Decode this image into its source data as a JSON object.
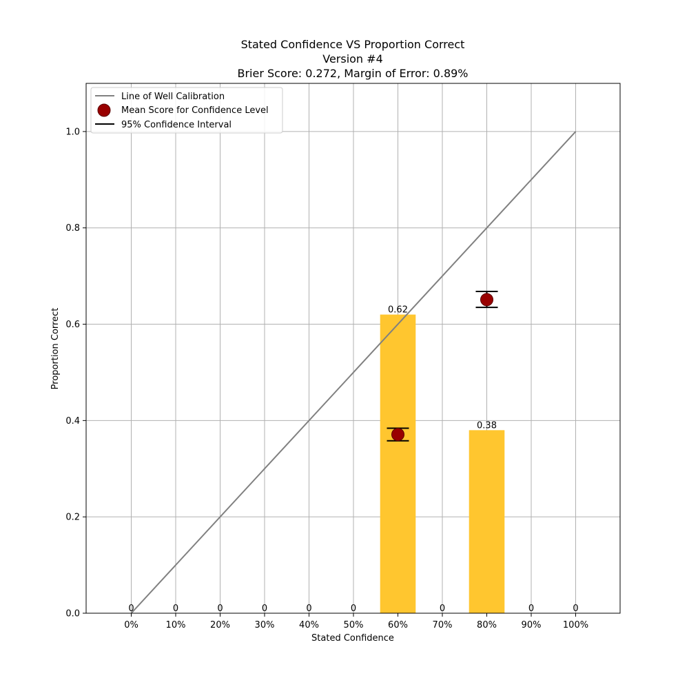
{
  "chart_data": {
    "type": "bar",
    "title": "Stated Confidence VS Proportion Correct",
    "subtitle": "Version #4",
    "subtitle2": "Brier Score: 0.272, Margin of Error: 0.89%",
    "xlabel": "Stated Confidence",
    "ylabel": "Proportion Correct",
    "categories": [
      "0%",
      "10%",
      "20%",
      "30%",
      "40%",
      "50%",
      "60%",
      "70%",
      "80%",
      "90%",
      "100%"
    ],
    "x_values": [
      0,
      10,
      20,
      30,
      40,
      50,
      60,
      70,
      80,
      90,
      100
    ],
    "values": [
      0,
      0,
      0,
      0,
      0,
      0,
      0.62,
      0,
      0.38,
      0,
      0
    ],
    "bar_labels": [
      "0",
      "0",
      "0",
      "0",
      "0",
      "0",
      "0.62",
      "0",
      "0.38",
      "0",
      "0"
    ],
    "ylim": [
      0,
      1.1
    ],
    "yticks": [
      0.0,
      0.2,
      0.4,
      0.6,
      0.8,
      1.0
    ],
    "ytick_labels": [
      "0.0",
      "0.2",
      "0.4",
      "0.6",
      "0.8",
      "1.0"
    ],
    "calibration_line": {
      "x": [
        0,
        100
      ],
      "y": [
        0,
        1.0
      ]
    },
    "mean_points": [
      {
        "x": 60,
        "y": 0.371,
        "ci_low": 0.358,
        "ci_high": 0.384
      },
      {
        "x": 80,
        "y": 0.651,
        "ci_low": 0.635,
        "ci_high": 0.668
      }
    ],
    "legend": {
      "placement": "top-left",
      "entries": [
        {
          "label": "Line of Well Calibration",
          "kind": "line"
        },
        {
          "label": "Mean Score for Confidence Level",
          "kind": "marker"
        },
        {
          "label": "95% Confidence Interval",
          "kind": "errorbar"
        }
      ]
    },
    "grid": true,
    "colors": {
      "bar": "#ffc62f",
      "calibration_line": "#808080",
      "marker": "#990000",
      "marker_edge": "#5a0000",
      "errorbar": "#000000",
      "grid": "#b0b0b0"
    }
  }
}
